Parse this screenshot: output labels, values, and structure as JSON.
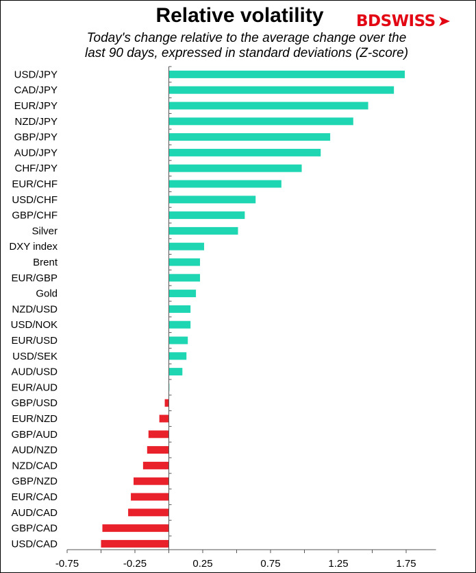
{
  "header": {
    "title": "Relative volatility",
    "subtitle_line1": "Today's change relative to the average change over the",
    "subtitle_line2": "last 90 days, expressed in standard deviations (Z-score)",
    "logo_text_a": "BD",
    "logo_text_b": "SWISS"
  },
  "colors": {
    "positive": "#1fd6b3",
    "negative": "#e8212b",
    "brand": "#e30613"
  },
  "chart_data": {
    "type": "bar",
    "orientation": "horizontal",
    "title": "Relative volatility",
    "subtitle": "Today's change relative to the average change over the last 90 days, expressed in standard deviations (Z-score)",
    "categories": [
      "USD/JPY",
      "CAD/JPY",
      "EUR/JPY",
      "NZD/JPY",
      "GBP/JPY",
      "AUD/JPY",
      "CHF/JPY",
      "EUR/CHF",
      "USD/CHF",
      "GBP/CHF",
      "Silver",
      "DXY index",
      "Brent",
      "EUR/GBP",
      "Gold",
      "NZD/USD",
      "USD/NOK",
      "EUR/USD",
      "USD/SEK",
      "AUD/USD",
      "EUR/AUD",
      "GBP/USD",
      "EUR/NZD",
      "GBP/AUD",
      "AUD/NZD",
      "NZD/CAD",
      "GBP/NZD",
      "EUR/CAD",
      "AUD/CAD",
      "GBP/CAD",
      "USD/CAD"
    ],
    "values": [
      1.74,
      1.66,
      1.47,
      1.36,
      1.19,
      1.12,
      0.98,
      0.83,
      0.64,
      0.56,
      0.51,
      0.26,
      0.23,
      0.23,
      0.2,
      0.16,
      0.16,
      0.14,
      0.13,
      0.1,
      0.0,
      -0.03,
      -0.07,
      -0.15,
      -0.16,
      -0.19,
      -0.26,
      -0.28,
      -0.3,
      -0.49,
      -0.5
    ],
    "xlim": [
      -0.75,
      1.75
    ],
    "xticks": [
      "-0.75",
      "-0.25",
      "0.25",
      "0.75",
      "1.25",
      "1.75"
    ],
    "xtick_values": [
      -0.75,
      -0.25,
      0.25,
      0.75,
      1.25,
      1.75
    ],
    "grid": false,
    "legend": "none"
  }
}
